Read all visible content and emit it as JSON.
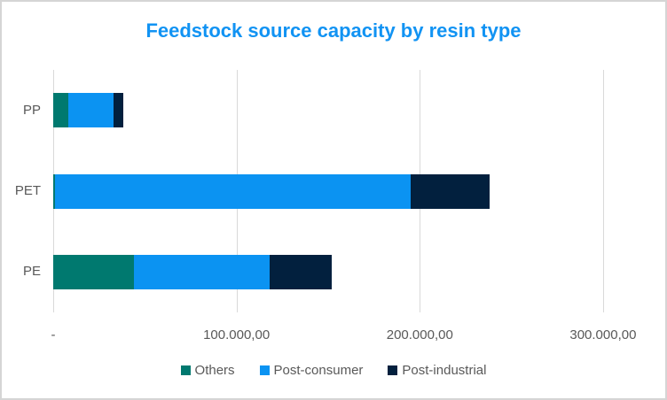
{
  "chart_data": {
    "type": "bar",
    "orientation": "horizontal",
    "stacked": true,
    "title": "Feedstock source capacity by resin type",
    "categories": [
      "PP",
      "PET",
      "PE"
    ],
    "series": [
      {
        "name": "Others",
        "color": "#00796F",
        "values": [
          8000,
          1200,
          44000
        ]
      },
      {
        "name": "Post-consumer",
        "color": "#0B93F2",
        "values": [
          25000,
          194000,
          74000
        ]
      },
      {
        "name": "Post-industrial",
        "color": "#02203E",
        "values": [
          5000,
          43000,
          34000
        ]
      }
    ],
    "x_axis": {
      "min": 0,
      "max": 331500,
      "gridlines": true,
      "ticks": [
        {
          "value": 0,
          "label": "-"
        },
        {
          "value": 100000,
          "label": "100.000,00"
        },
        {
          "value": 200000,
          "label": "200.000,00"
        },
        {
          "value": 300000,
          "label": "300.000,00"
        }
      ]
    },
    "legend": {
      "position": "bottom",
      "entries": [
        "Others",
        "Post-consumer",
        "Post-industrial"
      ]
    }
  },
  "styles": {
    "title_color": "#1193F3",
    "axis_text_color": "#595959",
    "gridline_color": "#D9D9D9",
    "border_color": "#D5D5D5",
    "background_color": "#FFFFFF"
  }
}
